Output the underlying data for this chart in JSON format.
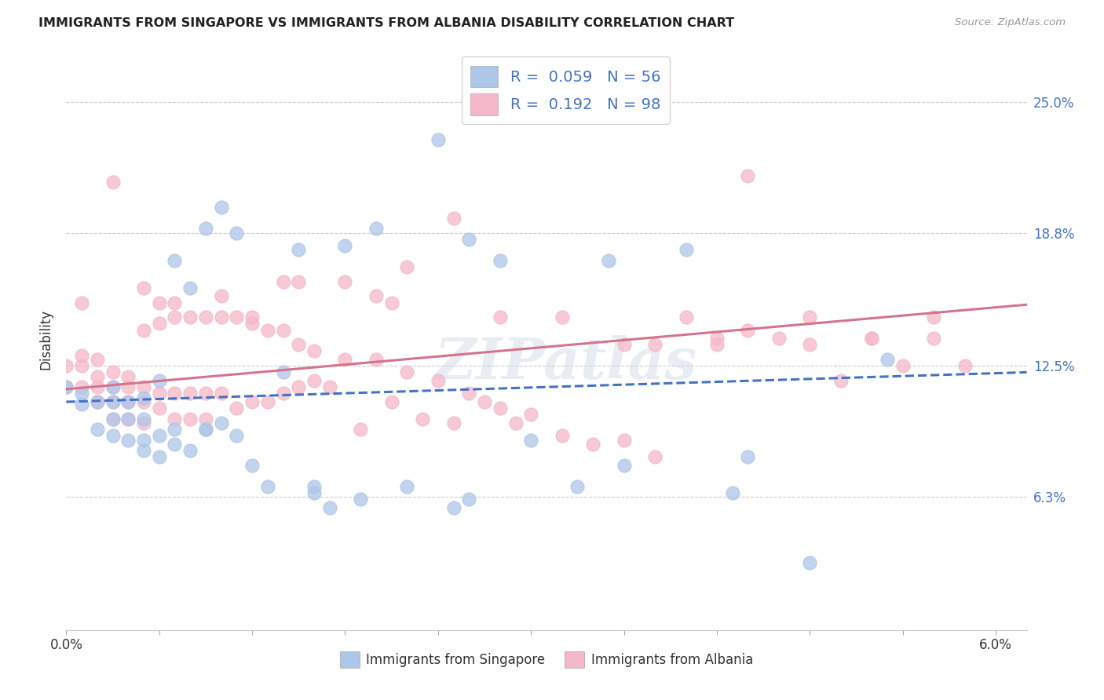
{
  "title": "IMMIGRANTS FROM SINGAPORE VS IMMIGRANTS FROM ALBANIA DISABILITY CORRELATION CHART",
  "source": "Source: ZipAtlas.com",
  "ylabel": "Disability",
  "ytick_labels": [
    "25.0%",
    "18.8%",
    "12.5%",
    "6.3%"
  ],
  "ytick_values": [
    0.25,
    0.188,
    0.125,
    0.063
  ],
  "xlim": [
    0.0,
    0.062
  ],
  "ylim": [
    0.0,
    0.275
  ],
  "singapore_color": "#aec6e8",
  "albania_color": "#f5b8c8",
  "singapore_line_color": "#4472c4",
  "albania_line_color": "#d4748c",
  "background_color": "#ffffff",
  "watermark": "ZIPatlas",
  "singapore_scatter_x": [
    0.0,
    0.001,
    0.001,
    0.002,
    0.002,
    0.003,
    0.003,
    0.003,
    0.003,
    0.004,
    0.004,
    0.004,
    0.005,
    0.005,
    0.005,
    0.005,
    0.006,
    0.006,
    0.006,
    0.007,
    0.007,
    0.007,
    0.008,
    0.008,
    0.009,
    0.009,
    0.009,
    0.01,
    0.01,
    0.011,
    0.011,
    0.012,
    0.013,
    0.014,
    0.015,
    0.016,
    0.017,
    0.018,
    0.019,
    0.02,
    0.022,
    0.024,
    0.026,
    0.028,
    0.03,
    0.033,
    0.036,
    0.04,
    0.044,
    0.048,
    0.025,
    0.035,
    0.016,
    0.026,
    0.043,
    0.053
  ],
  "singapore_scatter_y": [
    0.115,
    0.107,
    0.112,
    0.095,
    0.108,
    0.092,
    0.1,
    0.108,
    0.115,
    0.09,
    0.1,
    0.108,
    0.085,
    0.09,
    0.1,
    0.11,
    0.082,
    0.092,
    0.118,
    0.088,
    0.095,
    0.175,
    0.085,
    0.162,
    0.095,
    0.19,
    0.095,
    0.098,
    0.2,
    0.092,
    0.188,
    0.078,
    0.068,
    0.122,
    0.18,
    0.068,
    0.058,
    0.182,
    0.062,
    0.19,
    0.068,
    0.232,
    0.185,
    0.175,
    0.09,
    0.068,
    0.078,
    0.18,
    0.082,
    0.032,
    0.058,
    0.175,
    0.065,
    0.062,
    0.065,
    0.128
  ],
  "albania_scatter_x": [
    0.0,
    0.0,
    0.001,
    0.001,
    0.001,
    0.002,
    0.002,
    0.002,
    0.002,
    0.003,
    0.003,
    0.003,
    0.003,
    0.004,
    0.004,
    0.004,
    0.004,
    0.005,
    0.005,
    0.005,
    0.005,
    0.006,
    0.006,
    0.006,
    0.007,
    0.007,
    0.007,
    0.008,
    0.008,
    0.009,
    0.009,
    0.009,
    0.01,
    0.01,
    0.011,
    0.011,
    0.012,
    0.012,
    0.013,
    0.013,
    0.014,
    0.014,
    0.015,
    0.015,
    0.016,
    0.016,
    0.017,
    0.018,
    0.019,
    0.02,
    0.021,
    0.022,
    0.023,
    0.024,
    0.025,
    0.026,
    0.027,
    0.028,
    0.029,
    0.03,
    0.032,
    0.034,
    0.036,
    0.038,
    0.04,
    0.042,
    0.044,
    0.046,
    0.048,
    0.05,
    0.052,
    0.054,
    0.056,
    0.058,
    0.038,
    0.025,
    0.015,
    0.022,
    0.032,
    0.018,
    0.01,
    0.006,
    0.003,
    0.008,
    0.042,
    0.048,
    0.052,
    0.056,
    0.044,
    0.036,
    0.028,
    0.02,
    0.012,
    0.005,
    0.001,
    0.007,
    0.014,
    0.021
  ],
  "albania_scatter_y": [
    0.115,
    0.125,
    0.115,
    0.125,
    0.13,
    0.108,
    0.115,
    0.12,
    0.128,
    0.1,
    0.108,
    0.115,
    0.122,
    0.1,
    0.108,
    0.115,
    0.12,
    0.098,
    0.108,
    0.115,
    0.162,
    0.105,
    0.112,
    0.155,
    0.1,
    0.112,
    0.155,
    0.1,
    0.112,
    0.1,
    0.112,
    0.148,
    0.112,
    0.158,
    0.105,
    0.148,
    0.108,
    0.145,
    0.108,
    0.142,
    0.112,
    0.142,
    0.115,
    0.135,
    0.118,
    0.132,
    0.115,
    0.128,
    0.095,
    0.128,
    0.108,
    0.122,
    0.1,
    0.118,
    0.098,
    0.112,
    0.108,
    0.105,
    0.098,
    0.102,
    0.092,
    0.088,
    0.09,
    0.082,
    0.148,
    0.138,
    0.142,
    0.138,
    0.135,
    0.118,
    0.138,
    0.125,
    0.138,
    0.125,
    0.135,
    0.195,
    0.165,
    0.172,
    0.148,
    0.165,
    0.148,
    0.145,
    0.212,
    0.148,
    0.135,
    0.148,
    0.138,
    0.148,
    0.215,
    0.135,
    0.148,
    0.158,
    0.148,
    0.142,
    0.155,
    0.148,
    0.165,
    0.155
  ],
  "singapore_trend_x": [
    0.0,
    0.062
  ],
  "singapore_trend_y": [
    0.108,
    0.122
  ],
  "albania_trend_x": [
    0.0,
    0.062
  ],
  "albania_trend_y": [
    0.114,
    0.154
  ]
}
